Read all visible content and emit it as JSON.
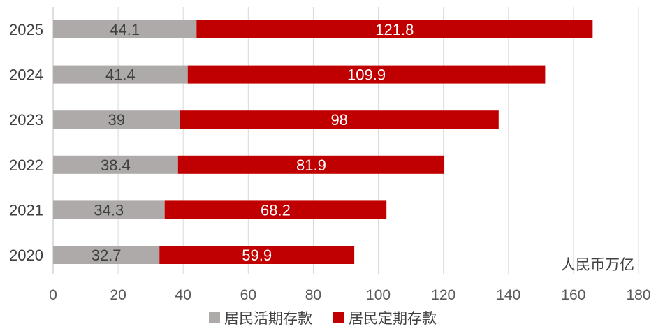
{
  "chart_data": {
    "type": "bar",
    "orientation": "horizontal",
    "stacked": true,
    "categories": [
      "2025",
      "2024",
      "2023",
      "2022",
      "2021",
      "2020"
    ],
    "series": [
      {
        "name": "居民活期存款",
        "values": [
          44.1,
          41.4,
          39,
          38.4,
          34.3,
          32.7
        ],
        "color": "#aeaaaa",
        "label_color": "#404040"
      },
      {
        "name": "居民定期存款",
        "values": [
          121.8,
          109.9,
          98,
          81.9,
          68.2,
          59.9
        ],
        "color": "#c00000",
        "label_color": "#ffffff"
      }
    ],
    "x_ticks": [
      0,
      20,
      40,
      60,
      80,
      100,
      120,
      140,
      160,
      180
    ],
    "xlim": [
      0,
      180
    ],
    "unit_label": "人民币万亿",
    "grid": "vertical",
    "legend_position": "bottom"
  }
}
